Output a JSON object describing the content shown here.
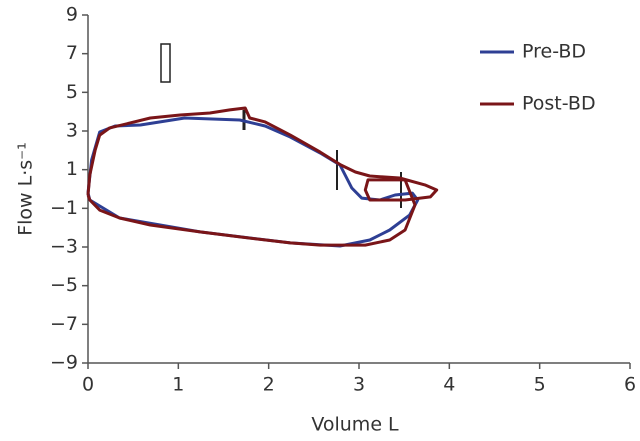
{
  "chart_data": {
    "type": "line",
    "xlabel": "Volume L",
    "ylabel": "Flow L·s⁻¹",
    "xlim": [
      0,
      6
    ],
    "xticks": [
      0,
      1,
      2,
      3,
      4,
      5,
      6
    ],
    "ylim": [
      -9,
      9
    ],
    "yticks": [
      {
        "value": -9,
        "label": "−9"
      },
      {
        "value": -7,
        "label": "−7"
      },
      {
        "value": -5,
        "label": "−5"
      },
      {
        "value": -3,
        "label": "−3"
      },
      {
        "value": -1,
        "label": "−1"
      },
      1,
      3,
      5,
      7,
      9
    ],
    "grid": false,
    "legend": "upper right",
    "series": [
      {
        "name": "Pre-BD",
        "color": "#2e3f94",
        "x": [
          0,
          0.04,
          0.13,
          0.3,
          0.58,
          1.07,
          1.68,
          1.96,
          2.24,
          2.57,
          2.79,
          2.92,
          3.03,
          3.23,
          3.4,
          3.59,
          3.65,
          3.56,
          3.34,
          3.12,
          2.79,
          2.24,
          1.24,
          0.35,
          0.02,
          0
        ],
        "values": [
          -0.2,
          1.5,
          2.95,
          3.26,
          3.31,
          3.67,
          3.57,
          3.26,
          2.69,
          1.86,
          1.24,
          0.05,
          -0.47,
          -0.57,
          -0.31,
          -0.21,
          -0.57,
          -1.35,
          -2.12,
          -2.64,
          -2.95,
          -2.79,
          -2.22,
          -1.5,
          -0.57,
          -0.2
        ]
      },
      {
        "name": "Post-BD",
        "color": "#7a1518",
        "x": [
          0,
          0.02,
          0.08,
          0.13,
          0.24,
          0.46,
          0.69,
          1.02,
          1.35,
          1.57,
          1.74,
          1.79,
          1.96,
          2.24,
          2.57,
          2.8,
          2.96,
          3.12,
          3.45,
          3.73,
          3.86,
          3.79,
          3.51,
          3.12,
          3.07,
          3.1,
          3.51,
          3.62,
          3.51,
          3.34,
          3.07,
          2.57,
          2.24,
          1.68,
          1.24,
          0.69,
          0.35,
          0.13,
          0.02,
          0
        ],
        "values": [
          -0.31,
          0.72,
          2.02,
          2.79,
          3.16,
          3.41,
          3.67,
          3.83,
          3.93,
          4.09,
          4.19,
          3.67,
          3.47,
          2.79,
          1.91,
          1.24,
          0.88,
          0.67,
          0.57,
          0.21,
          -0.05,
          -0.41,
          -0.57,
          -0.57,
          -0.05,
          0.47,
          0.47,
          -0.83,
          -2.12,
          -2.64,
          -2.9,
          -2.9,
          -2.79,
          -2.48,
          -2.22,
          -1.86,
          -1.5,
          -1.09,
          -0.57,
          -0.31
        ]
      }
    ]
  }
}
